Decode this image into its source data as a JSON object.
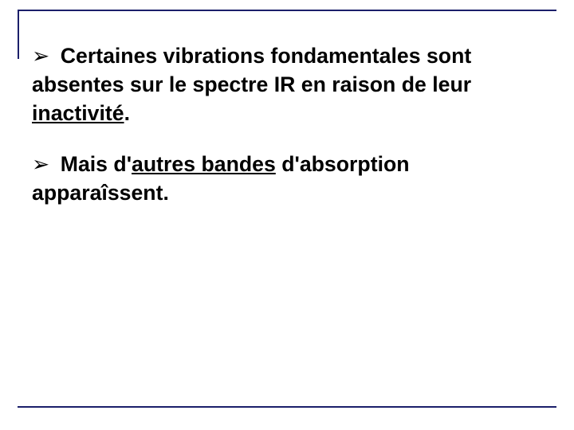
{
  "colors": {
    "border": "#1b1f6a",
    "text": "#000000",
    "arrow": "#000000"
  },
  "typography": {
    "font_family": "Comic Sans MS",
    "font_size_pt": 20,
    "font_weight": "bold",
    "line_height": 1.35
  },
  "bullets": [
    {
      "arrow": "➢",
      "runs": [
        {
          "text": "Certaines vibrations fondamentales sont absentes sur le spectre IR en raison de leur ",
          "underline": false
        },
        {
          "text": "inactivité",
          "underline": true
        },
        {
          "text": ".",
          "underline": false
        }
      ]
    },
    {
      "arrow": "➢",
      "runs": [
        {
          "text": "Mais d'",
          "underline": false
        },
        {
          "text": "autres bandes",
          "underline": true
        },
        {
          "text": " d'absorption apparaîssent.",
          "underline": false
        }
      ]
    }
  ]
}
